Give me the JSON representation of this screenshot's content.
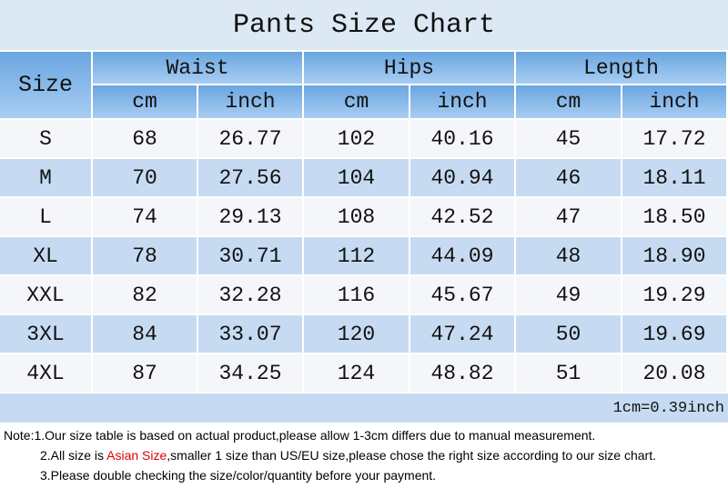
{
  "header": {
    "title": "Pants Size Chart"
  },
  "table": {
    "size_header": "Size",
    "groups": [
      "Waist",
      "Hips",
      "Length"
    ],
    "units": [
      "cm",
      "inch",
      "cm",
      "inch",
      "cm",
      "inch"
    ],
    "rows": [
      [
        "S",
        "68",
        "26.77",
        "102",
        "40.16",
        "45",
        "17.72"
      ],
      [
        "M",
        "70",
        "27.56",
        "104",
        "40.94",
        "46",
        "18.11"
      ],
      [
        "L",
        "74",
        "29.13",
        "108",
        "42.52",
        "47",
        "18.50"
      ],
      [
        "XL",
        "78",
        "30.71",
        "112",
        "44.09",
        "48",
        "18.90"
      ],
      [
        "XXL",
        "82",
        "32.28",
        "116",
        "45.67",
        "49",
        "19.29"
      ],
      [
        "3XL",
        "84",
        "33.07",
        "120",
        "47.24",
        "50",
        "19.69"
      ],
      [
        "4XL",
        "87",
        "34.25",
        "124",
        "48.82",
        "51",
        "20.08"
      ]
    ],
    "conversion": "1cm=0.39inch"
  },
  "notes": [
    [
      "Note:1.Our size table is based on actual product,please allow 1-3cm differs due to manual measurement."
    ],
    [
      "2.All size is ",
      "Asian Size",
      ",smaller 1 size than US/EU size,please chose the right size according to our size chart."
    ],
    [
      "3.Please double checking the size/color/quantity before your payment."
    ]
  ]
}
